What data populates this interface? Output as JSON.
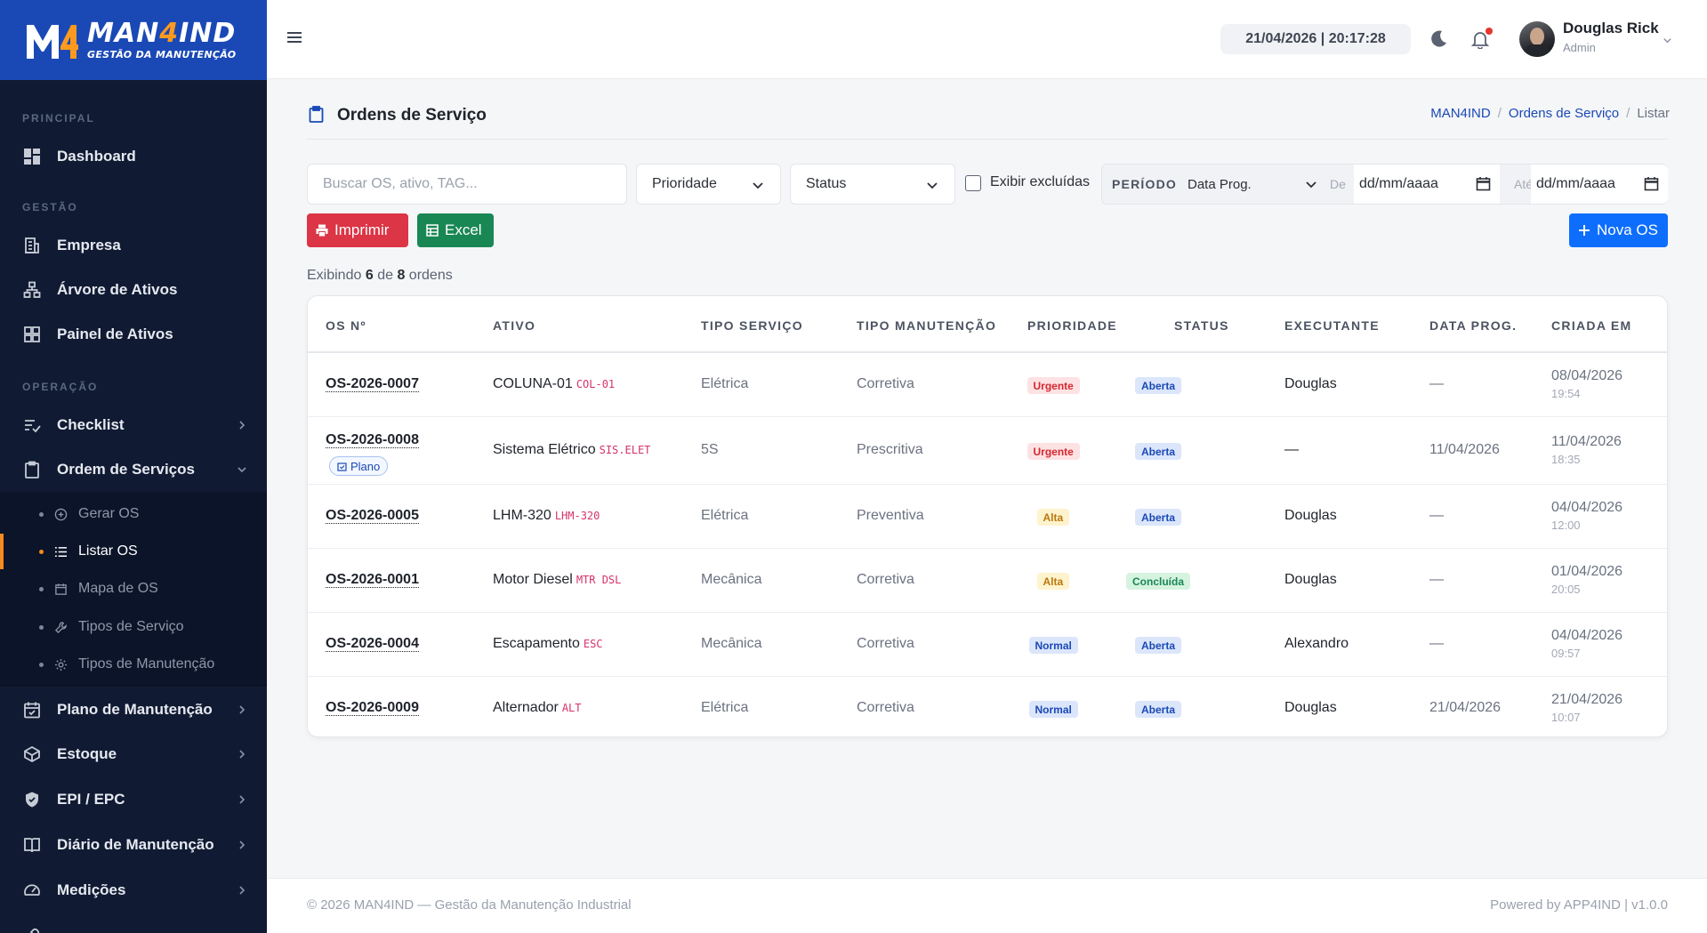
{
  "brand": {
    "name_a": "MAN",
    "name_b": "4",
    "name_c": "IND",
    "tagline": "GESTÃO DA MANUTENÇÃO",
    "mark": "M4"
  },
  "sidebar": {
    "sections": {
      "principal": "PRINCIPAL",
      "gestao": "GESTÃO",
      "operacao": "OPERAÇÃO"
    },
    "items": {
      "dashboard": "Dashboard",
      "empresa": "Empresa",
      "arvore": "Árvore de Ativos",
      "painel": "Painel de Ativos",
      "checklist": "Checklist",
      "ordem": "Ordem de Serviços",
      "plano": "Plano de Manutenção",
      "estoque": "Estoque",
      "epi": "EPI / EPC",
      "diario": "Diário de Manutenção",
      "medicoes": "Medições"
    },
    "subitems": {
      "gerar": "Gerar OS",
      "listar": "Listar OS",
      "mapa": "Mapa de OS",
      "tipos_servico": "Tipos de Serviço",
      "tipos_manut": "Tipos de Manutenção"
    }
  },
  "header": {
    "datetime": "21/04/2026 | 20:17:28",
    "user_name": "Douglas Rick",
    "user_role": "Admin"
  },
  "page": {
    "title": "Ordens de Serviço",
    "breadcrumb": [
      "MAN4IND",
      "Ordens de Serviço",
      "Listar"
    ]
  },
  "filters": {
    "search_placeholder": "Buscar OS, ativo, TAG...",
    "priority": "Prioridade",
    "status": "Status",
    "show_deleted": "Exibir excluídas",
    "period_label": "PERÍODO",
    "period_field": "Data Prog.",
    "from_label": "De",
    "from_value": "dd/mm/aaaa",
    "to_label": "Até",
    "to_value": "dd/mm/aaaa"
  },
  "actions": {
    "print": "Imprimir",
    "excel": "Excel",
    "new": "Nova OS"
  },
  "count": {
    "prefix": "Exibindo",
    "shown": "6",
    "mid": "de",
    "total": "8",
    "suffix": "ordens"
  },
  "table": {
    "headers": [
      "OS Nº",
      "ATIVO",
      "TIPO SERVIÇO",
      "TIPO MANUTENÇÃO",
      "PRIORIDADE",
      "STATUS",
      "EXECUTANTE",
      "DATA PROG.",
      "CRIADA EM"
    ],
    "rows": [
      {
        "os": "OS-2026-0007",
        "plan": "",
        "asset": "COLUNA-01",
        "tag": "COL-01",
        "service": "Elétrica",
        "maint": "Corretiva",
        "priority": "Urgente",
        "status": "Aberta",
        "exec": "Douglas",
        "prog": "—",
        "date": "08/04/2026",
        "time": "19:54"
      },
      {
        "os": "OS-2026-0008",
        "plan": "Plano",
        "asset": "Sistema Elétrico",
        "tag": "SIS.ELET",
        "service": "5S",
        "maint": "Prescritiva",
        "priority": "Urgente",
        "status": "Aberta",
        "exec": "—",
        "prog": "11/04/2026",
        "date": "11/04/2026",
        "time": "18:35"
      },
      {
        "os": "OS-2026-0005",
        "plan": "",
        "asset": "LHM-320",
        "tag": "LHM-320",
        "service": "Elétrica",
        "maint": "Preventiva",
        "priority": "Alta",
        "status": "Aberta",
        "exec": "Douglas",
        "prog": "—",
        "date": "04/04/2026",
        "time": "12:00"
      },
      {
        "os": "OS-2026-0001",
        "plan": "",
        "asset": "Motor Diesel",
        "tag": "MTR DSL",
        "service": "Mecânica",
        "maint": "Corretiva",
        "priority": "Alta",
        "status": "Concluída",
        "exec": "Douglas",
        "prog": "—",
        "date": "01/04/2026",
        "time": "20:05"
      },
      {
        "os": "OS-2026-0004",
        "plan": "",
        "asset": "Escapamento",
        "tag": "ESC",
        "service": "Mecânica",
        "maint": "Corretiva",
        "priority": "Normal",
        "status": "Aberta",
        "exec": "Alexandro",
        "prog": "—",
        "date": "04/04/2026",
        "time": "09:57"
      },
      {
        "os": "OS-2026-0009",
        "plan": "",
        "asset": "Alternador",
        "tag": "ALT",
        "service": "Elétrica",
        "maint": "Corretiva",
        "priority": "Normal",
        "status": "Aberta",
        "exec": "Douglas",
        "prog": "21/04/2026",
        "date": "21/04/2026",
        "time": "10:07"
      }
    ]
  },
  "footer": {
    "left": "© 2026 MAN4IND — Gestão da Manutenção Industrial",
    "right": "Powered by APP4IND  |  v1.0.0"
  },
  "colors": {
    "brand": "#1a49b6",
    "sidebar": "#101b33",
    "accent": "#f58a1f",
    "danger": "#dc3545",
    "success": "#198754",
    "primary": "#0d6efd"
  },
  "icons": [
    "grid-icon",
    "building-icon",
    "tree-icon",
    "panel-icon",
    "checklist-icon",
    "clipboard-icon",
    "calendar-icon",
    "box-icon",
    "shield-icon",
    "book-icon",
    "gauge-icon",
    "menu-icon",
    "moon-icon",
    "bell-icon",
    "printer-icon",
    "table-icon",
    "plus-icon"
  ]
}
